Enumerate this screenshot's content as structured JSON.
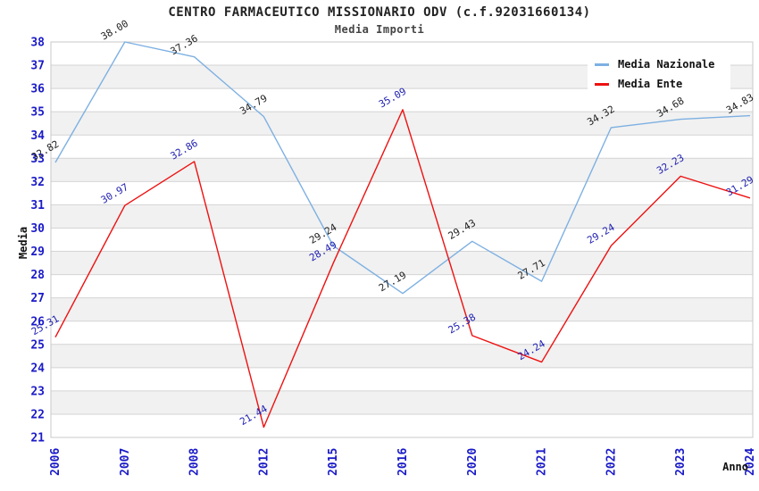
{
  "title": "CENTRO FARMACEUTICO MISSIONARIO ODV (c.f.92031660134)",
  "subtitle": "Media Importi",
  "chart_data": {
    "type": "line",
    "x": [
      "2006",
      "2007",
      "2008",
      "2012",
      "2015",
      "2016",
      "2020",
      "2021",
      "2022",
      "2023",
      "2024"
    ],
    "series": [
      {
        "name": "Media Nazionale",
        "color": "#7db0e2",
        "label_color": "#222222",
        "values": [
          32.82,
          38.0,
          37.36,
          34.79,
          29.24,
          27.19,
          29.43,
          27.71,
          34.32,
          34.68,
          34.83
        ],
        "labels": [
          "32.82",
          "38.00",
          "37.36",
          "34.79",
          "29.24",
          "27.19",
          "29.43",
          "27.71",
          "34.32",
          "34.68",
          "34.83"
        ]
      },
      {
        "name": "Media Ente",
        "color": "#ee1111",
        "label_color": "#2222b2",
        "values": [
          25.31,
          30.97,
          32.86,
          21.44,
          28.49,
          35.09,
          25.38,
          24.24,
          29.24,
          32.23,
          31.29
        ],
        "labels": [
          "25.31",
          "30.97",
          "32.86",
          "21.44",
          "28.49",
          "35.09",
          "25.38",
          "24.24",
          "29.24",
          "32.23",
          "31.29"
        ]
      }
    ],
    "xlabel": "Anno",
    "ylabel": "Media",
    "ylim": [
      21,
      38
    ],
    "ytick_step": 1,
    "grid": true,
    "legend_position": "top-right",
    "colors": {
      "tick_label": "#1a1ac8",
      "axis_title": "#111111",
      "band_gray": "#f1f1f1",
      "gridline": "#d4d4d4",
      "plot_border": "#c8c8c8"
    }
  }
}
